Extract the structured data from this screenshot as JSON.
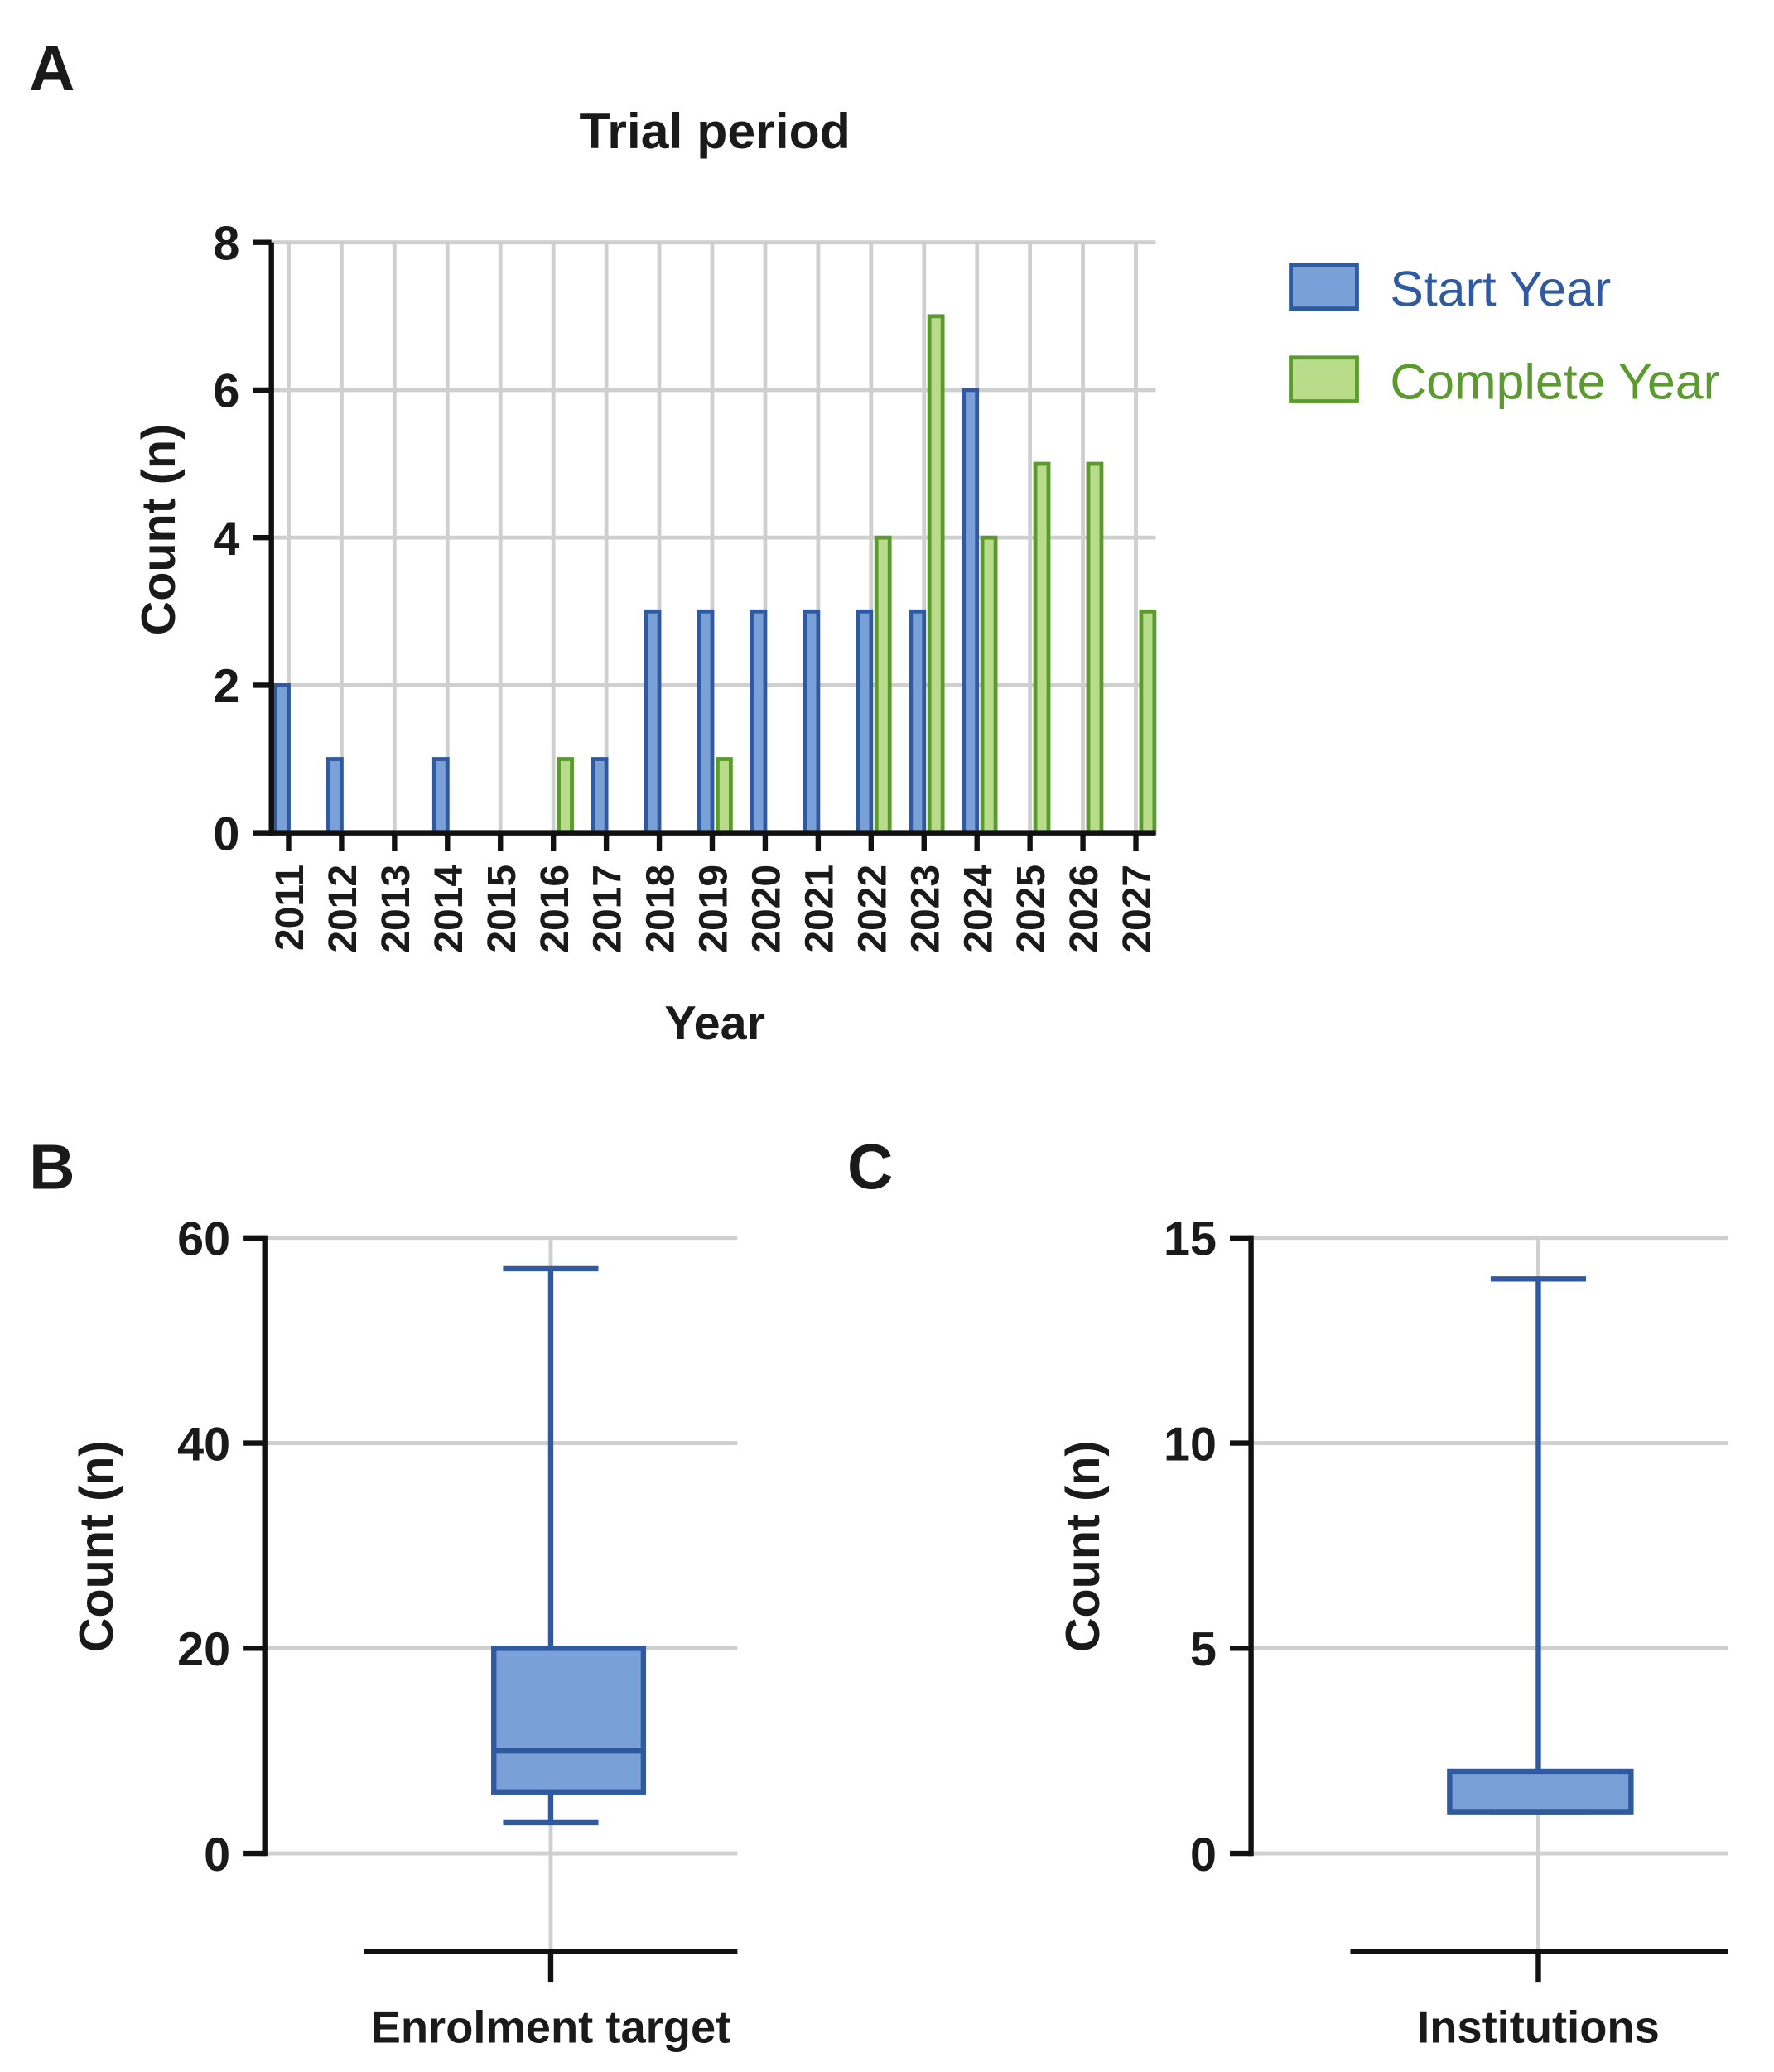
{
  "chart_data": [
    {
      "panel": "A",
      "type": "bar",
      "title": "Trial period",
      "xlabel": "Year",
      "ylabel": "Count (n)",
      "ylim": [
        0,
        8
      ],
      "yticks": [
        "0",
        "2",
        "4",
        "6",
        "8"
      ],
      "categories": [
        "2011",
        "2012",
        "2013",
        "2014",
        "2015",
        "2016",
        "2017",
        "2018",
        "2019",
        "2020",
        "2021",
        "2022",
        "2023",
        "2024",
        "2025",
        "2026",
        "2027"
      ],
      "series": [
        {
          "name": "Start Year",
          "color": "#2f5aa0",
          "fill": "#7aa0d8",
          "values": [
            2,
            1,
            0,
            1,
            0,
            0,
            1,
            3,
            3,
            3,
            3,
            3,
            3,
            6,
            0,
            0,
            0
          ]
        },
        {
          "name": "Complete Year",
          "color": "#5a9a2e",
          "fill": "#b8dc8a",
          "values": [
            0,
            0,
            0,
            0,
            0,
            1,
            0,
            0,
            1,
            0,
            0,
            4,
            7,
            4,
            5,
            5,
            3
          ]
        }
      ],
      "legend": "right",
      "grid": true
    },
    {
      "panel": "B",
      "type": "box",
      "xlabel": "Enrolment target",
      "ylabel": "Count (n)",
      "ylim": [
        0,
        60
      ],
      "yticks": [
        "0",
        "20",
        "40",
        "60"
      ],
      "min": 3,
      "q1": 6,
      "median": 10,
      "q3": 20,
      "max": 57,
      "color": "#2f5aa0",
      "fill": "#7aa0d8"
    },
    {
      "panel": "C",
      "type": "box",
      "xlabel": "Institutions",
      "ylabel": "Count (n)",
      "ylim": [
        0,
        15
      ],
      "yticks": [
        "0",
        "5",
        "10",
        "15"
      ],
      "min": 1,
      "q1": 1,
      "median": 1,
      "q3": 2,
      "max": 14,
      "color": "#2f5aa0",
      "fill": "#7aa0d8"
    }
  ]
}
